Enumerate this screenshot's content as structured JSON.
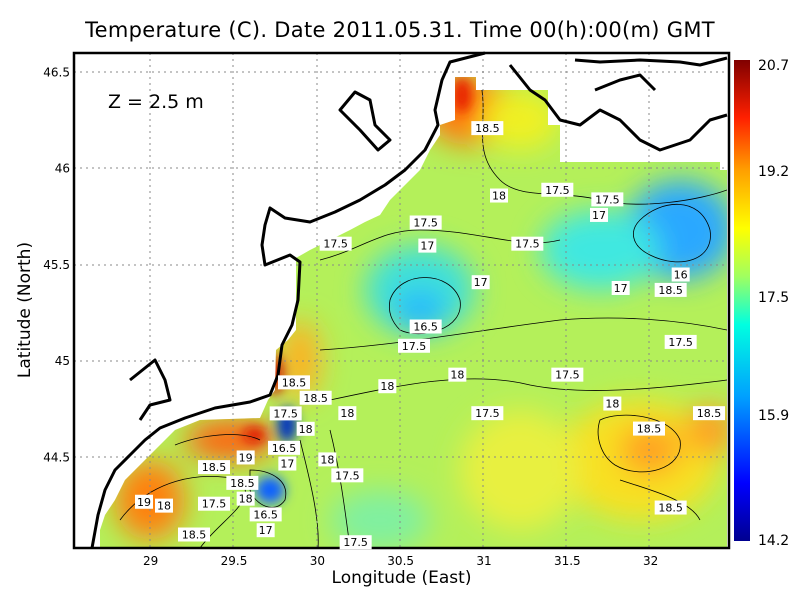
{
  "title": "Temperature (C). Date 2011.05.31. Time 00(h):00(m) GMT",
  "depth_label": "Z = 2.5 m",
  "chart_data": {
    "type": "heatmap",
    "title": "Temperature (C). Date 2011.05.31. Time 00(h):00(m) GMT",
    "xlabel": "Longitude (East)",
    "ylabel": "Latitude (North)",
    "xlim": [
      28.54,
      32.47
    ],
    "ylim": [
      44.03,
      46.6
    ],
    "xticks": [
      "29",
      "29.5",
      "30",
      "30.5",
      "31",
      "31.5",
      "32"
    ],
    "yticks": [
      "44.5",
      "45",
      "45.5",
      "46",
      "46.5"
    ],
    "grid": true,
    "colorbar": {
      "min": 14.2,
      "max": 20.7,
      "ticks": [
        "20.7",
        "19.2",
        "17.5",
        "15.9",
        "14.2"
      ],
      "colors": [
        "#00008f",
        "#0000ff",
        "#00a0ff",
        "#00ffe0",
        "#a0ff60",
        "#ffff00",
        "#ffa000",
        "#ff2000",
        "#800000"
      ]
    },
    "contour_labels": [
      {
        "lon": 31.02,
        "lat": 46.21,
        "text": "18.5"
      },
      {
        "lon": 31.09,
        "lat": 45.86,
        "text": "18"
      },
      {
        "lon": 31.44,
        "lat": 45.89,
        "text": "17.5"
      },
      {
        "lon": 31.74,
        "lat": 45.84,
        "text": "17.5"
      },
      {
        "lon": 31.69,
        "lat": 45.78,
        "text": "17"
      },
      {
        "lon": 30.65,
        "lat": 45.72,
        "text": "17.5"
      },
      {
        "lon": 30.11,
        "lat": 45.61,
        "text": "17.5"
      },
      {
        "lon": 30.66,
        "lat": 45.6,
        "text": "17"
      },
      {
        "lon": 31.26,
        "lat": 45.61,
        "text": "17.5"
      },
      {
        "lon": 30.98,
        "lat": 45.41,
        "text": "17"
      },
      {
        "lon": 32.18,
        "lat": 45.45,
        "text": "16"
      },
      {
        "lon": 32.12,
        "lat": 45.37,
        "text": "18.5"
      },
      {
        "lon": 31.82,
        "lat": 45.38,
        "text": "17"
      },
      {
        "lon": 30.65,
        "lat": 45.18,
        "text": "16.5"
      },
      {
        "lon": 30.58,
        "lat": 45.08,
        "text": "17.5"
      },
      {
        "lon": 32.18,
        "lat": 45.1,
        "text": "17.5"
      },
      {
        "lon": 30.84,
        "lat": 44.93,
        "text": "18"
      },
      {
        "lon": 31.5,
        "lat": 44.93,
        "text": "17.5"
      },
      {
        "lon": 30.42,
        "lat": 44.87,
        "text": "18"
      },
      {
        "lon": 29.86,
        "lat": 44.89,
        "text": "18.5"
      },
      {
        "lon": 29.99,
        "lat": 44.81,
        "text": "18.5"
      },
      {
        "lon": 29.81,
        "lat": 44.76,
        "text": "17.5"
      },
      {
        "lon": 29.93,
        "lat": 44.68,
        "text": "18"
      },
      {
        "lon": 30.18,
        "lat": 44.73,
        "text": "18"
      },
      {
        "lon": 31.02,
        "lat": 44.73,
        "text": "17.5"
      },
      {
        "lon": 31.77,
        "lat": 44.78,
        "text": "18"
      },
      {
        "lon": 32.35,
        "lat": 44.73,
        "text": "18.5"
      },
      {
        "lon": 31.99,
        "lat": 44.65,
        "text": "18.5"
      },
      {
        "lon": 29.8,
        "lat": 44.55,
        "text": "16.5"
      },
      {
        "lon": 29.82,
        "lat": 44.51,
        "text": "17"
      },
      {
        "lon": 30.06,
        "lat": 44.49,
        "text": "18"
      },
      {
        "lon": 30.18,
        "lat": 44.48,
        "text": "17.5"
      },
      {
        "lon": 29.57,
        "lat": 44.5,
        "text": "19"
      },
      {
        "lon": 29.38,
        "lat": 44.45,
        "text": "18.5"
      },
      {
        "lon": 29.55,
        "lat": 44.42,
        "text": "18.5"
      },
      {
        "lon": 29.57,
        "lat": 44.39,
        "text": "18"
      },
      {
        "lon": 28.96,
        "lat": 44.27,
        "text": "19"
      },
      {
        "lon": 29.08,
        "lat": 44.25,
        "text": "18"
      },
      {
        "lon": 29.38,
        "lat": 44.26,
        "text": "17.5"
      },
      {
        "lon": 29.69,
        "lat": 44.22,
        "text": "16.5"
      },
      {
        "lon": 29.69,
        "lat": 44.19,
        "text": "17"
      },
      {
        "lon": 29.26,
        "lat": 44.1,
        "text": "18.5"
      },
      {
        "lon": 32.12,
        "lat": 44.24,
        "text": "18.5"
      },
      {
        "lon": 30.23,
        "lat": 44.06,
        "text": "17.5"
      }
    ]
  }
}
